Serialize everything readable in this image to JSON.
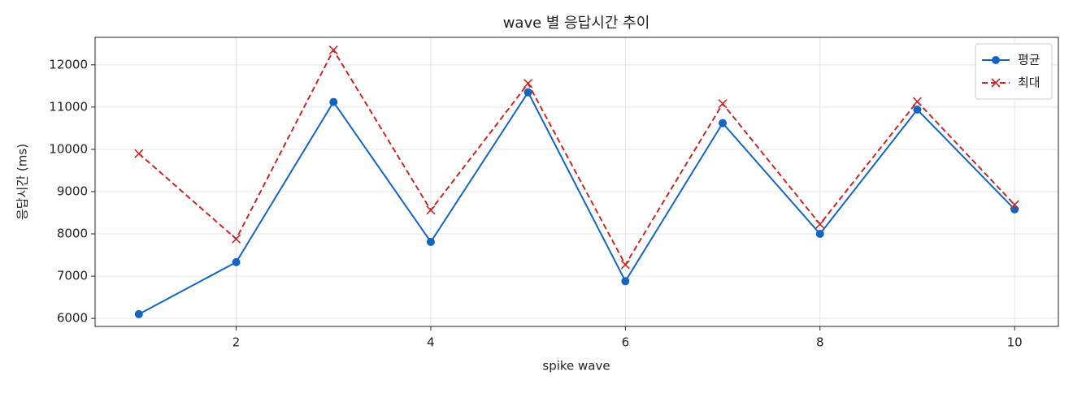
{
  "chart_data": {
    "type": "line",
    "title": "wave 별 응답시간 추이",
    "xlabel": "spike wave",
    "ylabel": "응답시간 (ms)",
    "x": [
      1,
      2,
      3,
      4,
      5,
      6,
      7,
      8,
      9,
      10
    ],
    "series": [
      {
        "name": "평균",
        "color": "#1565c0",
        "marker": "o",
        "linestyle": "solid",
        "values": [
          6100,
          7330,
          11120,
          7810,
          11350,
          6880,
          10620,
          8000,
          10940,
          8580
        ]
      },
      {
        "name": "최대",
        "color": "#c62828",
        "marker": "x",
        "linestyle": "dashed",
        "values": [
          9900,
          7880,
          12350,
          8560,
          11560,
          7270,
          11080,
          8230,
          11130,
          8690
        ]
      }
    ],
    "xlim": [
      0.55,
      10.45
    ],
    "ylim": [
      5810,
      12650
    ],
    "xticks": [
      2,
      4,
      6,
      8,
      10
    ],
    "yticks": [
      6000,
      7000,
      8000,
      9000,
      10000,
      11000,
      12000
    ],
    "grid": true,
    "legend": "upper right"
  }
}
